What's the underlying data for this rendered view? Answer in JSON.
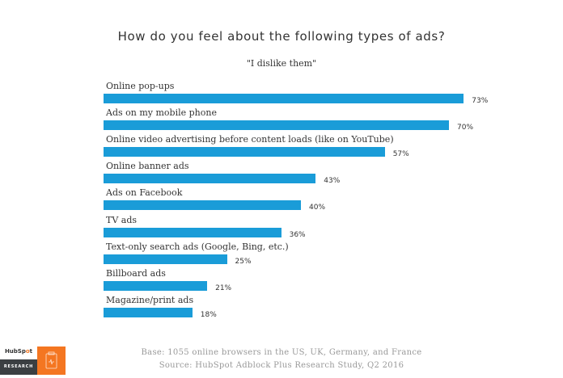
{
  "chart_data": {
    "type": "bar",
    "orientation": "horizontal",
    "title": "How do you feel about the following types of ads?",
    "subtitle": "\"I dislike them\"",
    "categories": [
      "Online pop-ups",
      "Ads on my mobile phone",
      "Online video advertising before content loads (like on YouTube)",
      "Online banner ads",
      "Ads on Facebook",
      "TV ads",
      "Text-only search ads (Google, Bing, etc.)",
      "Billboard ads",
      "Magazine/print ads"
    ],
    "values": [
      73,
      70,
      57,
      43,
      40,
      36,
      25,
      21,
      18
    ],
    "value_labels": [
      "73%",
      "70%",
      "57%",
      "43%",
      "40%",
      "36%",
      "25%",
      "21%",
      "18%"
    ],
    "xlabel": "",
    "ylabel": "",
    "unit": "%",
    "grid": false,
    "legend": null,
    "bar_color": "#1a9cd8"
  },
  "footer": {
    "base": "Base: 1055 online browsers in the US, UK, Germany, and France",
    "source": "Source: HubSpot Adblock Plus Research Study, Q2 2016"
  },
  "logo": {
    "brand": "HubSpot",
    "section": "RESEARCH",
    "accent_color": "#f47621",
    "icon": "clipboard-icon"
  }
}
